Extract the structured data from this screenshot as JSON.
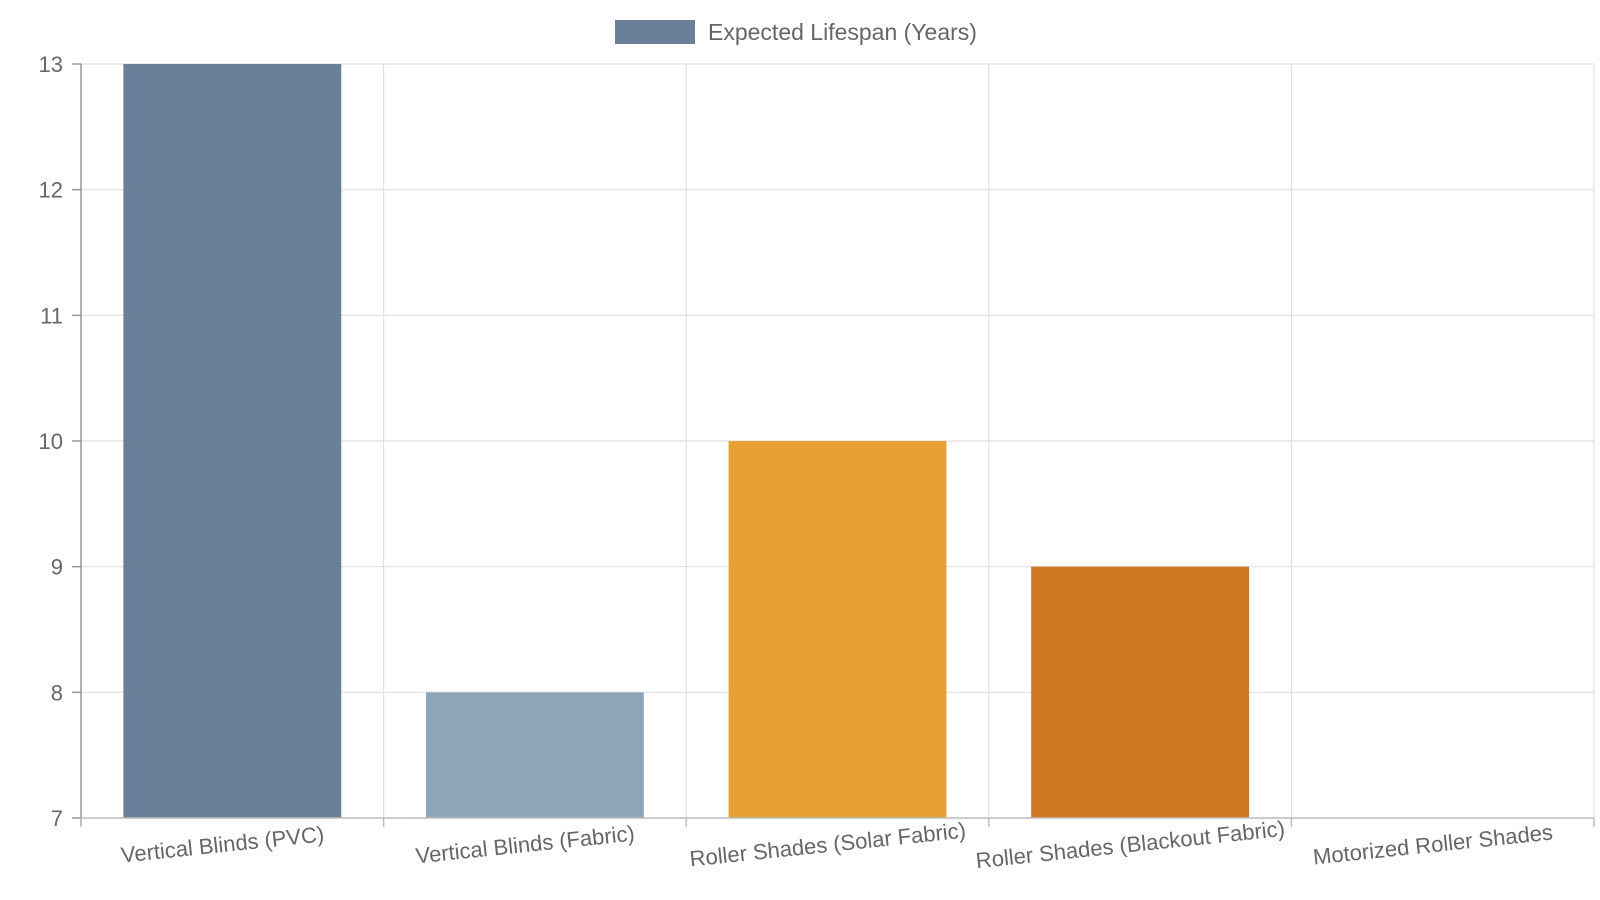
{
  "chart_data": {
    "type": "bar",
    "categories": [
      "Vertical Blinds (PVC)",
      "Vertical Blinds (Fabric)",
      "Roller Shades (Solar Fabric)",
      "Roller Shades (Blackout Fabric)",
      "Motorized Roller Shades"
    ],
    "series": [
      {
        "name": "Expected Lifespan (Years)",
        "values": [
          13,
          8,
          10,
          9,
          7
        ]
      }
    ],
    "bar_colors": [
      "#6a7f99",
      "#8fa5b9",
      "#e6a033",
      "#d07821",
      "#ffffff"
    ],
    "legend_color": "#6a7f99",
    "ylim": [
      7,
      13
    ],
    "yticks": [
      7,
      8,
      9,
      10,
      11,
      12,
      13
    ],
    "grid": true,
    "legend_position": "top-center",
    "xlabel": "",
    "ylabel": ""
  }
}
